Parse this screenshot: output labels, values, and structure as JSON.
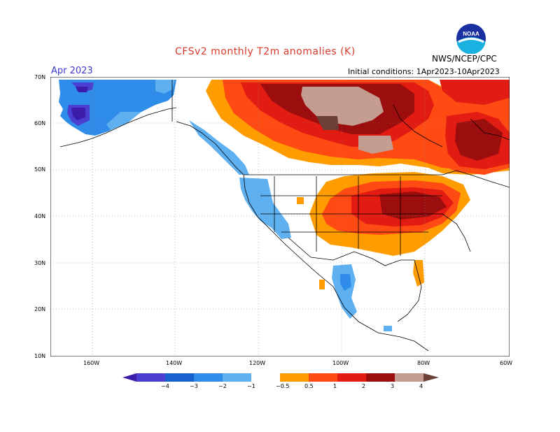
{
  "header": {
    "title": "CFSv2 monthly T2m anomalies (K)",
    "month": "Apr 2023",
    "initial_conditions": "Initial conditions: 1Apr2023-10Apr2023",
    "agency": "NWS/NCEP/CPC",
    "logo_text": "NOAA"
  },
  "axes": {
    "lat_labels": [
      "70N",
      "60N",
      "50N",
      "40N",
      "30N",
      "20N",
      "10N"
    ],
    "lon_labels": [
      "160W",
      "140W",
      "120W",
      "100W",
      "80W",
      "60W"
    ]
  },
  "legend": {
    "labels": [
      "−4",
      "−3",
      "−2",
      "−1",
      "−0.5",
      "0.5",
      "1",
      "2",
      "3",
      "4"
    ],
    "colors": [
      "#3b1cab",
      "#4a3fd0",
      "#1660d0",
      "#2f8ce8",
      "#5fb0f0",
      "#ffffff",
      "#ff9c00",
      "#ff4a14",
      "#e21c12",
      "#9c0d0d",
      "#c49c90",
      "#6d4037"
    ]
  },
  "colors": {
    "ocean": "#ffffff",
    "title_red": "#d83a2a",
    "month_blue": "#3a3ad0"
  }
}
